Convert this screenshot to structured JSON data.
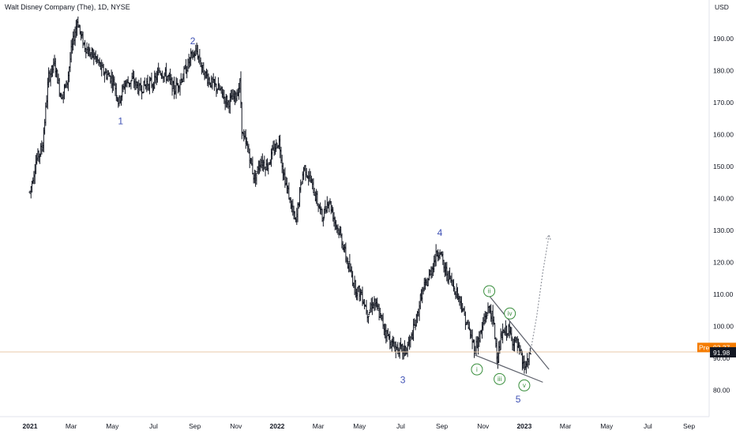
{
  "chart_data": {
    "type": "ohlc",
    "title": "Walt Disney Company (The), 1D, NYSE",
    "currency": "USD",
    "y_ticks": [
      80,
      90,
      100,
      110,
      120,
      130,
      140,
      150,
      160,
      170,
      180,
      190
    ],
    "y_tick_labels": [
      "80.00",
      "90.00",
      "100.00",
      "110.00",
      "120.00",
      "130.00",
      "140.00",
      "150.00",
      "160.00",
      "170.00",
      "180.00",
      "190.00"
    ],
    "ylim": [
      75,
      200
    ],
    "x_labels": [
      {
        "label": "2021",
        "month_index": 0,
        "bold": true
      },
      {
        "label": "Mar",
        "month_index": 2
      },
      {
        "label": "May",
        "month_index": 4
      },
      {
        "label": "Jul",
        "month_index": 6
      },
      {
        "label": "Sep",
        "month_index": 8
      },
      {
        "label": "Nov",
        "month_index": 10
      },
      {
        "label": "2022",
        "month_index": 12,
        "bold": true
      },
      {
        "label": "Mar",
        "month_index": 14
      },
      {
        "label": "May",
        "month_index": 16
      },
      {
        "label": "Jul",
        "month_index": 18
      },
      {
        "label": "Sep",
        "month_index": 20
      },
      {
        "label": "Nov",
        "month_index": 22
      },
      {
        "label": "2023",
        "month_index": 24,
        "bold": true
      },
      {
        "label": "Mar",
        "month_index": 26
      },
      {
        "label": "May",
        "month_index": 28
      },
      {
        "label": "Jul",
        "month_index": 30
      },
      {
        "label": "Sep",
        "month_index": 32
      }
    ],
    "price_path": [
      [
        0,
        142
      ],
      [
        0.3,
        152
      ],
      [
        0.6,
        156
      ],
      [
        0.9,
        178
      ],
      [
        1.2,
        182
      ],
      [
        1.5,
        172
      ],
      [
        1.8,
        176
      ],
      [
        2.0,
        186
      ],
      [
        2.3,
        196
      ],
      [
        2.5,
        190
      ],
      [
        2.8,
        186
      ],
      [
        3.2,
        184
      ],
      [
        3.5,
        180
      ],
      [
        3.9,
        178
      ],
      [
        4.1,
        176
      ],
      [
        4.3,
        170
      ],
      [
        4.6,
        176
      ],
      [
        5.0,
        177
      ],
      [
        5.3,
        174
      ],
      [
        5.7,
        176
      ],
      [
        6.0,
        176
      ],
      [
        6.3,
        180
      ],
      [
        6.7,
        178
      ],
      [
        7.0,
        174
      ],
      [
        7.4,
        178
      ],
      [
        7.8,
        184
      ],
      [
        8.1,
        186
      ],
      [
        8.4,
        180
      ],
      [
        8.8,
        176
      ],
      [
        9.2,
        174
      ],
      [
        9.6,
        170
      ],
      [
        10.0,
        172
      ],
      [
        10.2,
        176
      ],
      [
        10.3,
        160
      ],
      [
        10.6,
        155
      ],
      [
        10.9,
        146
      ],
      [
        11.2,
        152
      ],
      [
        11.5,
        150
      ],
      [
        11.9,
        156
      ],
      [
        12.1,
        158
      ],
      [
        12.3,
        148
      ],
      [
        12.6,
        140
      ],
      [
        12.9,
        132
      ],
      [
        13.1,
        142
      ],
      [
        13.3,
        150
      ],
      [
        13.6,
        146
      ],
      [
        13.9,
        140
      ],
      [
        14.2,
        134
      ],
      [
        14.5,
        140
      ],
      [
        14.8,
        133
      ],
      [
        15.1,
        128
      ],
      [
        15.4,
        120
      ],
      [
        15.8,
        112
      ],
      [
        16.1,
        110
      ],
      [
        16.4,
        104
      ],
      [
        16.7,
        108
      ],
      [
        17.0,
        103
      ],
      [
        17.3,
        98
      ],
      [
        17.6,
        94
      ],
      [
        17.9,
        93
      ],
      [
        18.2,
        92
      ],
      [
        18.5,
        96
      ],
      [
        18.8,
        103
      ],
      [
        19.0,
        110
      ],
      [
        19.3,
        114
      ],
      [
        19.7,
        122
      ],
      [
        19.9,
        124
      ],
      [
        20.1,
        118
      ],
      [
        20.3,
        116
      ],
      [
        20.6,
        112
      ],
      [
        20.9,
        108
      ],
      [
        21.1,
        103
      ],
      [
        21.4,
        97
      ],
      [
        21.6,
        93
      ],
      [
        21.9,
        98
      ],
      [
        22.1,
        103
      ],
      [
        22.3,
        106
      ],
      [
        22.5,
        101
      ],
      [
        22.7,
        90
      ],
      [
        22.9,
        97
      ],
      [
        23.2,
        99
      ],
      [
        23.4,
        96
      ],
      [
        23.6,
        95
      ],
      [
        23.8,
        91
      ],
      [
        24.0,
        87
      ],
      [
        24.2,
        89
      ],
      [
        24.3,
        91.98
      ]
    ],
    "last_price": 91.98,
    "last_price_label": "91.98",
    "pre_label": "Pre",
    "pre_price": 93.37,
    "pre_price_label": "93.37",
    "elliott_waves": [
      {
        "label": "1",
        "month_index": 4.4,
        "price": 164,
        "style": "blue"
      },
      {
        "label": "2",
        "month_index": 7.9,
        "price": 189,
        "style": "blue"
      },
      {
        "label": "3",
        "month_index": 18.1,
        "price": 83,
        "style": "blue"
      },
      {
        "label": "4",
        "month_index": 19.9,
        "price": 129,
        "style": "blue"
      },
      {
        "label": "5",
        "month_index": 23.7,
        "price": 77,
        "style": "blue"
      }
    ],
    "subwaves": [
      {
        "label": "i",
        "month_index": 21.7,
        "price": 86.5
      },
      {
        "label": "ii",
        "month_index": 22.3,
        "price": 111
      },
      {
        "label": "iii",
        "month_index": 22.8,
        "price": 83.5
      },
      {
        "label": "iv",
        "month_index": 23.3,
        "price": 104
      },
      {
        "label": "v",
        "month_index": 24.0,
        "price": 81.5
      }
    ],
    "trendlines": [
      {
        "from": [
          21.6,
          91
        ],
        "to": [
          24.9,
          82.5
        ]
      },
      {
        "from": [
          22.3,
          109.5
        ],
        "to": [
          25.2,
          86.5
        ]
      }
    ],
    "projection": [
      [
        24.3,
        92
      ],
      [
        24.6,
        103
      ],
      [
        24.9,
        117
      ],
      [
        25.2,
        128.5
      ]
    ],
    "colors": {
      "bars": "#131722",
      "wave_blue": "#3f51b5",
      "wave_green": "#388e3c",
      "trendline": "#5d606b",
      "projection": "#9598a1",
      "pre_badge": "#f57c00",
      "last_badge": "#131722",
      "price_line": "#e8c9a8"
    }
  }
}
